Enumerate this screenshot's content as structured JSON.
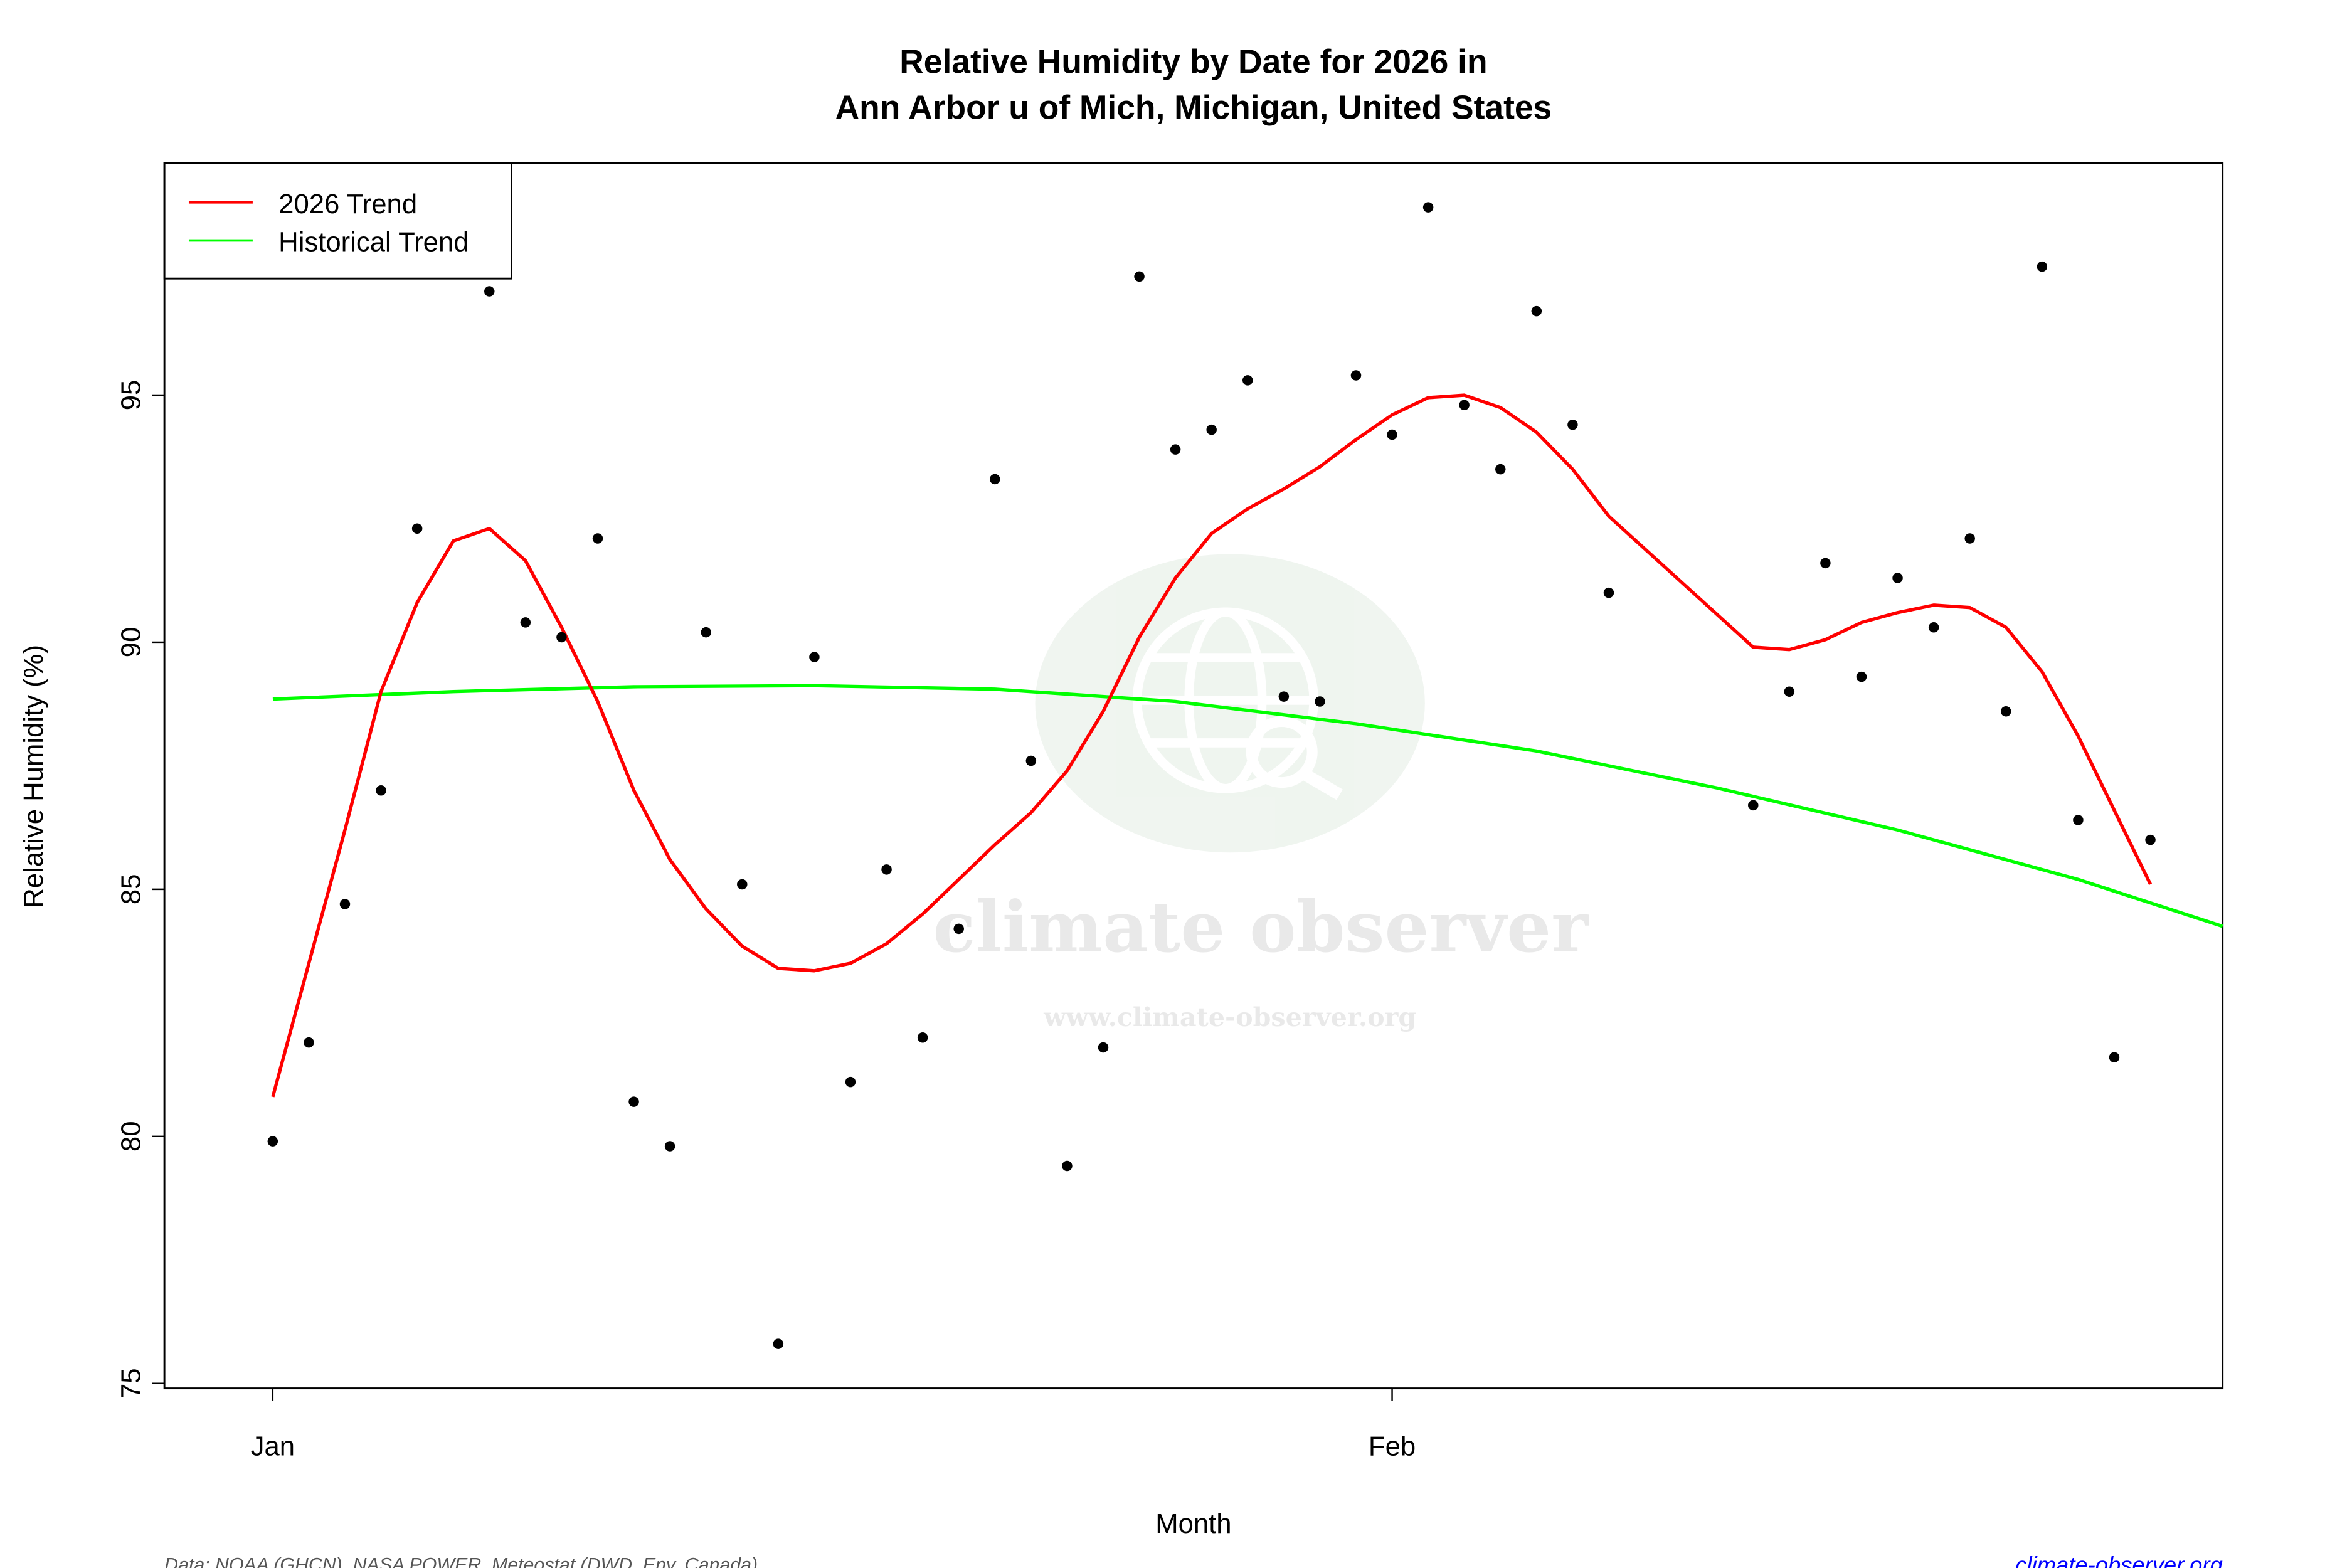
{
  "chart_data": {
    "type": "scatter",
    "title": "Relative Humidity by Date for 2026 in",
    "subtitle": "Ann Arbor u of Mich, Michigan, United States",
    "xlabel": "Month",
    "ylabel": "Relative Humidity (%)",
    "xlim": [
      "2025-12-29",
      "2026-02-24"
    ],
    "ylim": [
      74.9,
      99.7
    ],
    "x_ticks": [
      {
        "date": "2026-01-01",
        "label": "Jan"
      },
      {
        "date": "2026-02-01",
        "label": "Feb"
      }
    ],
    "y_ticks": [
      75,
      80,
      85,
      90,
      95
    ],
    "grid": false,
    "legend": {
      "placement": "top-left",
      "entries": [
        {
          "label": "2026 Trend",
          "color": "#ff0000"
        },
        {
          "label": "Historical Trend",
          "color": "#00ff00"
        }
      ]
    },
    "points": {
      "color": "#000000",
      "x": [
        "2026-01-01",
        "2026-01-02",
        "2026-01-03",
        "2026-01-04",
        "2026-01-05",
        "2026-01-07",
        "2026-01-08",
        "2026-01-09",
        "2026-01-10",
        "2026-01-11",
        "2026-01-12",
        "2026-01-13",
        "2026-01-14",
        "2026-01-15",
        "2026-01-16",
        "2026-01-17",
        "2026-01-18",
        "2026-01-19",
        "2026-01-20",
        "2026-01-21",
        "2026-01-22",
        "2026-01-23",
        "2026-01-24",
        "2026-01-25",
        "2026-01-26",
        "2026-01-27",
        "2026-01-28",
        "2026-01-29",
        "2026-01-30",
        "2026-01-31",
        "2026-02-01",
        "2026-02-02",
        "2026-02-03",
        "2026-02-04",
        "2026-02-05",
        "2026-02-06",
        "2026-02-07",
        "2026-02-11",
        "2026-02-12",
        "2026-02-13",
        "2026-02-14",
        "2026-02-15",
        "2026-02-16",
        "2026-02-17",
        "2026-02-18",
        "2026-02-19",
        "2026-02-20",
        "2026-02-21",
        "2026-02-22"
      ],
      "y": [
        79.9,
        81.9,
        84.7,
        87.0,
        92.3,
        97.1,
        90.4,
        90.1,
        92.1,
        80.7,
        79.8,
        90.2,
        85.1,
        75.8,
        89.7,
        81.1,
        85.4,
        82.0,
        84.2,
        93.3,
        87.6,
        79.4,
        81.8,
        97.4,
        93.9,
        94.3,
        95.3,
        88.9,
        88.8,
        95.4,
        94.2,
        98.8,
        94.8,
        93.5,
        96.7,
        94.4,
        91.0,
        86.7,
        89.0,
        91.6,
        89.3,
        91.3,
        90.3,
        92.1,
        88.6,
        97.6,
        86.4,
        81.6,
        86.0
      ]
    },
    "series": [
      {
        "name": "2026 Trend",
        "color": "#ff0000",
        "x": [
          "2026-01-01",
          "2026-01-02",
          "2026-01-03",
          "2026-01-04",
          "2026-01-05",
          "2026-01-06",
          "2026-01-07",
          "2026-01-08",
          "2026-01-09",
          "2026-01-10",
          "2026-01-11",
          "2026-01-12",
          "2026-01-13",
          "2026-01-14",
          "2026-01-15",
          "2026-01-16",
          "2026-01-17",
          "2026-01-18",
          "2026-01-19",
          "2026-01-20",
          "2026-01-21",
          "2026-01-22",
          "2026-01-23",
          "2026-01-24",
          "2026-01-25",
          "2026-01-26",
          "2026-01-27",
          "2026-01-28",
          "2026-01-29",
          "2026-01-30",
          "2026-01-31",
          "2026-02-01",
          "2026-02-02",
          "2026-02-03",
          "2026-02-04",
          "2026-02-05",
          "2026-02-06",
          "2026-02-07",
          "2026-02-11",
          "2026-02-12",
          "2026-02-13",
          "2026-02-14",
          "2026-02-15",
          "2026-02-16",
          "2026-02-17",
          "2026-02-18",
          "2026-02-19",
          "2026-02-20",
          "2026-02-21",
          "2026-02-22"
        ],
        "y": [
          80.8,
          83.5,
          86.2,
          89.0,
          90.8,
          92.05,
          92.3,
          91.65,
          90.3,
          88.8,
          87.0,
          85.6,
          84.6,
          83.85,
          83.4,
          83.35,
          83.5,
          83.9,
          84.5,
          85.2,
          85.9,
          86.55,
          87.4,
          88.6,
          90.1,
          91.3,
          92.2,
          92.7,
          93.1,
          93.55,
          94.1,
          94.6,
          94.95,
          95.0,
          94.75,
          94.25,
          93.5,
          92.55,
          89.9,
          89.85,
          90.05,
          90.4,
          90.6,
          90.75,
          90.7,
          90.3,
          89.4,
          88.1,
          86.6,
          85.1
        ]
      },
      {
        "name": "Historical Trend",
        "color": "#00ff00",
        "x": [
          "2026-01-01",
          "2026-01-06",
          "2026-01-11",
          "2026-01-16",
          "2026-01-21",
          "2026-01-26",
          "2026-01-31",
          "2026-02-05",
          "2026-02-10",
          "2026-02-15",
          "2026-02-20",
          "2026-02-24"
        ],
        "y": [
          88.85,
          89.0,
          89.1,
          89.12,
          89.05,
          88.8,
          88.35,
          87.8,
          87.05,
          86.2,
          85.2,
          84.25
        ]
      }
    ]
  },
  "footer": {
    "source": "Data: NOAA (GHCN), NASA POWER, Meteostat (DWD, Env. Canada)",
    "site": "climate-observer.org",
    "site_color": "#0000ff"
  },
  "watermark": {
    "name": "climate observer",
    "url": "www.climate-observer.org",
    "icon": "globe-search-icon"
  }
}
